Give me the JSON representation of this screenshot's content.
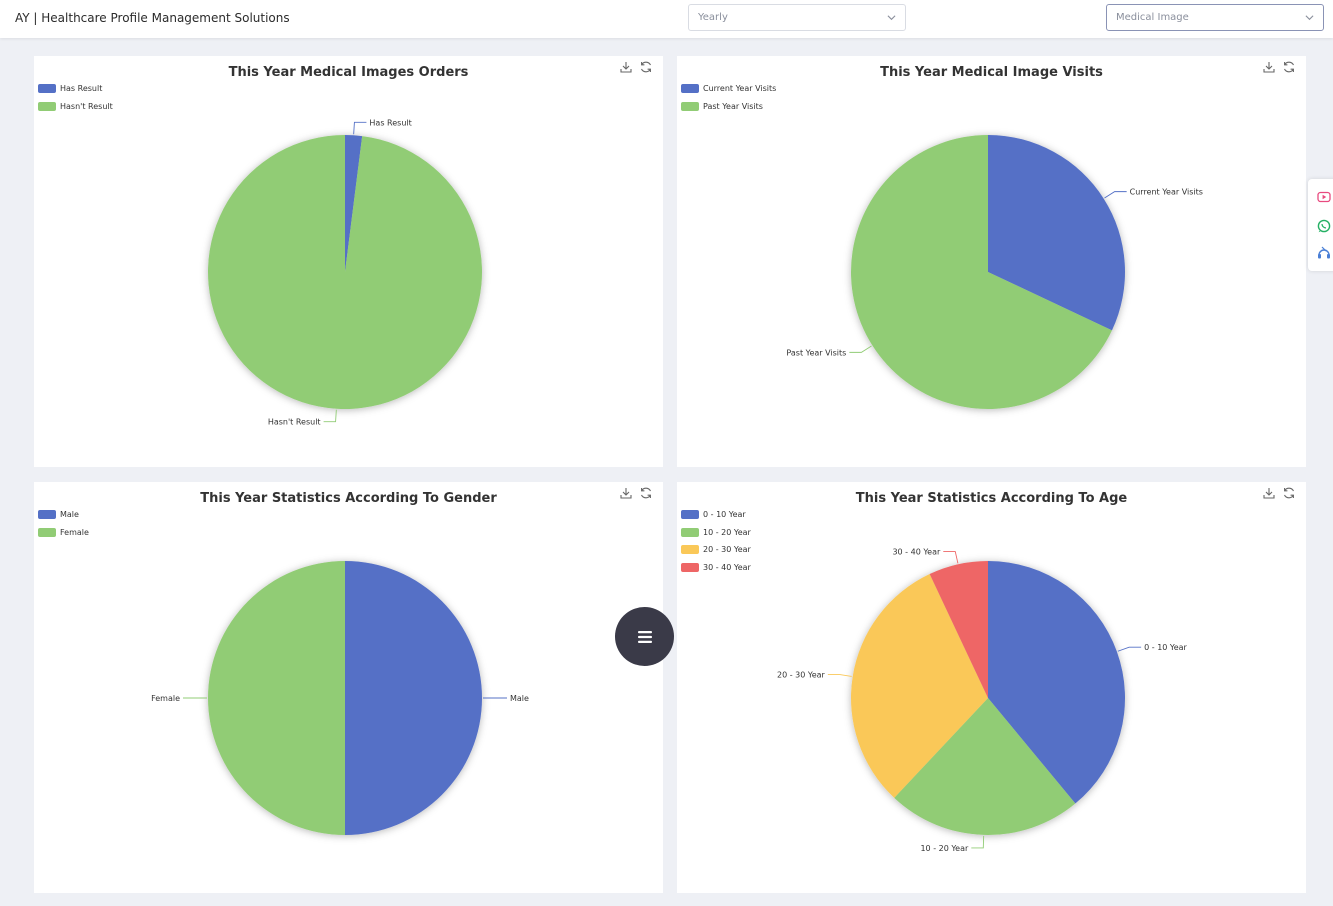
{
  "header": {
    "app_title": "AY | Healthcare Profile Management Solutions",
    "period_select": {
      "value": "Yearly"
    },
    "category_select": {
      "value": "Medical Image"
    }
  },
  "colors": {
    "blue": "#5470c6",
    "green": "#91cc75",
    "yellow": "#fac858",
    "red": "#ee6666"
  },
  "cards": {
    "orders": {
      "title": "This Year Medical Images Orders",
      "legend": [
        "Has Result",
        "Hasn't Result"
      ]
    },
    "visits": {
      "title": "This Year Medical Image Visits",
      "legend": [
        "Current Year Visits",
        "Past Year Visits"
      ]
    },
    "gender": {
      "title": "This Year Statistics According To Gender",
      "legend": [
        "Male",
        "Female"
      ]
    },
    "age": {
      "title": "This Year Statistics According To Age",
      "legend": [
        "0 - 10 Year",
        "10 - 20 Year",
        "20 - 30 Year",
        "30 - 40 Year"
      ]
    }
  },
  "icons": {
    "download": "download-icon",
    "refresh": "refresh-icon",
    "menu": "menu-icon",
    "youtube": "youtube-icon",
    "whatsapp": "whatsapp-icon",
    "support": "support-icon"
  },
  "chart_data": [
    {
      "type": "pie",
      "title": "This Year Medical Images Orders",
      "legend_position": "top-left",
      "categories": [
        "Has Result",
        "Hasn't Result"
      ],
      "values": [
        2,
        98
      ],
      "colors": [
        "#5470c6",
        "#91cc75"
      ]
    },
    {
      "type": "pie",
      "title": "This Year Medical Image Visits",
      "legend_position": "top-left",
      "categories": [
        "Current Year Visits",
        "Past Year Visits"
      ],
      "values": [
        32,
        68
      ],
      "colors": [
        "#5470c6",
        "#91cc75"
      ]
    },
    {
      "type": "pie",
      "title": "This Year Statistics According To Gender",
      "legend_position": "top-left",
      "categories": [
        "Male",
        "Female"
      ],
      "values": [
        50,
        50
      ],
      "colors": [
        "#5470c6",
        "#91cc75"
      ]
    },
    {
      "type": "pie",
      "title": "This Year Statistics According To Age",
      "legend_position": "top-left",
      "categories": [
        "0 - 10 Year",
        "10 - 20 Year",
        "20 - 30 Year",
        "30 - 40 Year"
      ],
      "values": [
        39,
        23,
        31,
        7
      ],
      "colors": [
        "#5470c6",
        "#91cc75",
        "#fac858",
        "#ee6666"
      ]
    }
  ]
}
